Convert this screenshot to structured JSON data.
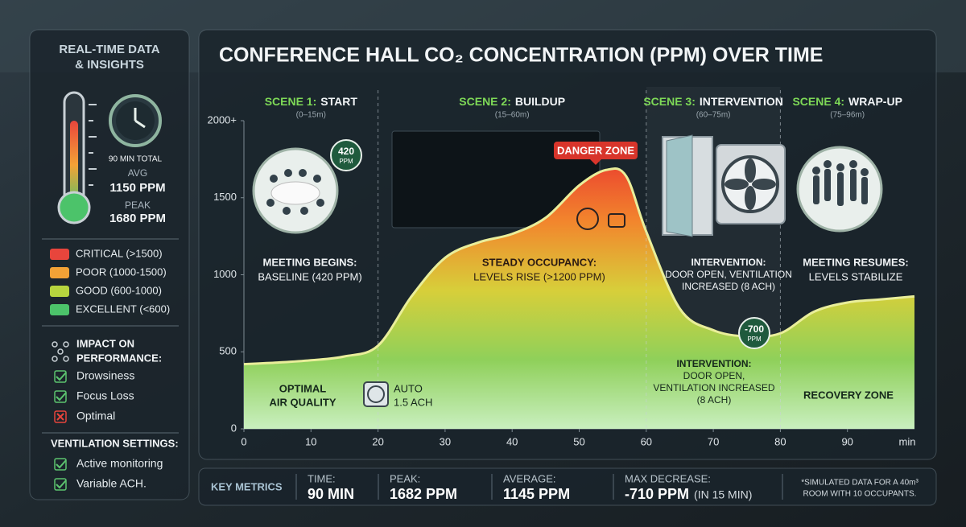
{
  "sidebar": {
    "title": [
      "REAL-TIME DATA",
      "& INSIGHTS"
    ],
    "total": "90 MIN TOTAL",
    "avg_label": "AVG",
    "avg": "1150 PPM",
    "peak_label": "PEAK",
    "peak": "1680 PPM",
    "legend": [
      {
        "label": "CRITICAL (>1500)",
        "color": "#e8453c"
      },
      {
        "label": "POOR (1000-1500)",
        "color": "#f3a236"
      },
      {
        "label": "GOOD (600-1000)",
        "color": "#b7d43e"
      },
      {
        "label": "EXCELLENT (<600)",
        "color": "#4cc36a"
      }
    ],
    "impact_title": [
      "IMPACT ON",
      "PERFORMANCE:"
    ],
    "impact": [
      {
        "label": "Drowsiness",
        "state": "check"
      },
      {
        "label": "Focus Loss",
        "state": "check"
      },
      {
        "label": "Optimal",
        "state": "cross"
      }
    ],
    "ventilation_title": "VENTILATION SETTINGS:",
    "ventilation": [
      {
        "label": "Active monitoring",
        "state": "check"
      },
      {
        "label": "Variable ACH.",
        "state": "check"
      }
    ]
  },
  "chart_data": {
    "type": "area",
    "title": "CONFERENCE HALL CO₂ CONCENTRATION (PPM) OVER TIME",
    "x": [
      0,
      5,
      10,
      15,
      20,
      25,
      30,
      35,
      40,
      45,
      50,
      54,
      57,
      60,
      65,
      70,
      75,
      80,
      85,
      90,
      95,
      100
    ],
    "values": [
      420,
      430,
      445,
      470,
      540,
      860,
      1110,
      1210,
      1265,
      1370,
      1580,
      1680,
      1640,
      1280,
      780,
      640,
      600,
      620,
      760,
      820,
      840,
      860
    ],
    "xlim": [
      0,
      100
    ],
    "xticks": [
      0,
      10,
      20,
      30,
      40,
      50,
      60,
      70,
      80,
      90
    ],
    "x_unit": "min",
    "ylim": [
      0,
      2000
    ],
    "yticks": [
      0,
      500,
      1000,
      1500,
      {
        "value": 2000,
        "label": "2000+"
      }
    ],
    "dividers": [
      20,
      60,
      80
    ],
    "scenes": [
      {
        "name": "SCENE 1:",
        "title": "START",
        "range": "(0–15m)"
      },
      {
        "name": "SCENE 2:",
        "title": "BUILDUP",
        "range": "(15–60m)"
      },
      {
        "name": "SCENE 3:",
        "title": "INTERVENTION",
        "range": "(60–75m)"
      },
      {
        "name": "SCENE 4:",
        "title": "WRAP-UP",
        "range": "(75–96m)"
      }
    ],
    "danger_label": "DANGER ZONE",
    "badges": [
      {
        "value": "420",
        "unit": "PPM"
      },
      {
        "value": "-700",
        "unit": "PPM"
      }
    ],
    "annotations": {
      "start": [
        "MEETING BEGINS:",
        "BASELINE (420 PPM)"
      ],
      "buildup": [
        "STEADY OCCUPANCY:",
        "LEVELS RISE (>1200 PPM)"
      ],
      "intervention": [
        "INTERVENTION:",
        "DOOR OPEN, VENTILATION",
        "INCREASED (8 ACH)"
      ],
      "wrapup": [
        "MEETING RESUMES:",
        "LEVELS STABILIZE"
      ],
      "optimal": [
        "OPTIMAL",
        "AIR QUALITY"
      ],
      "auto": [
        "AUTO",
        "1.5 ACH"
      ],
      "intervention_low": [
        "INTERVENTION:",
        "DOOR OPEN,",
        "VENTILATION INCREASED",
        "(8 ACH)"
      ],
      "recovery": [
        "RECOVERY ZONE"
      ]
    }
  },
  "metrics": {
    "title": "KEY METRICS",
    "items": [
      {
        "label": "TIME:",
        "value": "90 MIN"
      },
      {
        "label": "PEAK:",
        "value": "1682 PPM"
      },
      {
        "label": "AVERAGE:",
        "value": "1145 PPM"
      },
      {
        "label": "MAX DECREASE:",
        "value": "-710 PPM",
        "note": "(IN 15 MIN)"
      }
    ],
    "footnote": [
      "*SIMULATED DATA FOR A 40m³",
      "ROOM WITH 10 OCCUPANTS."
    ]
  }
}
